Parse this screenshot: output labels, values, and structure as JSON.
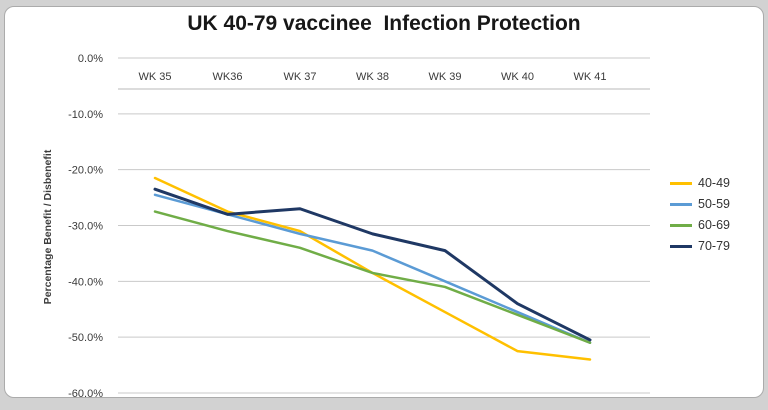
{
  "title": "UK 40-79 vaccinee  Infection Protection",
  "y_axis_title": "Percentage Benefit / Disbenefit",
  "chart_data": {
    "type": "line",
    "title": "UK 40-79 vaccinee  Infection Protection",
    "xlabel": "",
    "ylabel": "Percentage Benefit / Disbenefit",
    "categories": [
      "WK 35",
      "WK36",
      "WK 37",
      "WK 38",
      "WK 39",
      "WK 40",
      "WK 41"
    ],
    "y_ticks": [
      "0.0%",
      "-10.0%",
      "-20.0%",
      "-30.0%",
      "-40.0%",
      "-50.0%",
      "-60.0%"
    ],
    "ylim": [
      -60,
      0
    ],
    "grid": true,
    "legend_position": "right",
    "series": [
      {
        "name": "40-49",
        "color": "#FFC000",
        "values": [
          -21.5,
          -27.5,
          -31,
          -38.5,
          -45.5,
          -52.5,
          -54
        ]
      },
      {
        "name": "50-59",
        "color": "#5B9BD5",
        "values": [
          -24.5,
          -28,
          -31.5,
          -34.5,
          -40,
          -45.5,
          -51
        ]
      },
      {
        "name": "60-69",
        "color": "#70AD47",
        "values": [
          -27.5,
          -31,
          -34,
          -38.5,
          -41,
          -46,
          -51
        ]
      },
      {
        "name": "70-79",
        "color": "#1F3864",
        "values": [
          -23.5,
          -28,
          -27,
          -31.5,
          -34.5,
          -44,
          -50.5
        ]
      }
    ]
  }
}
